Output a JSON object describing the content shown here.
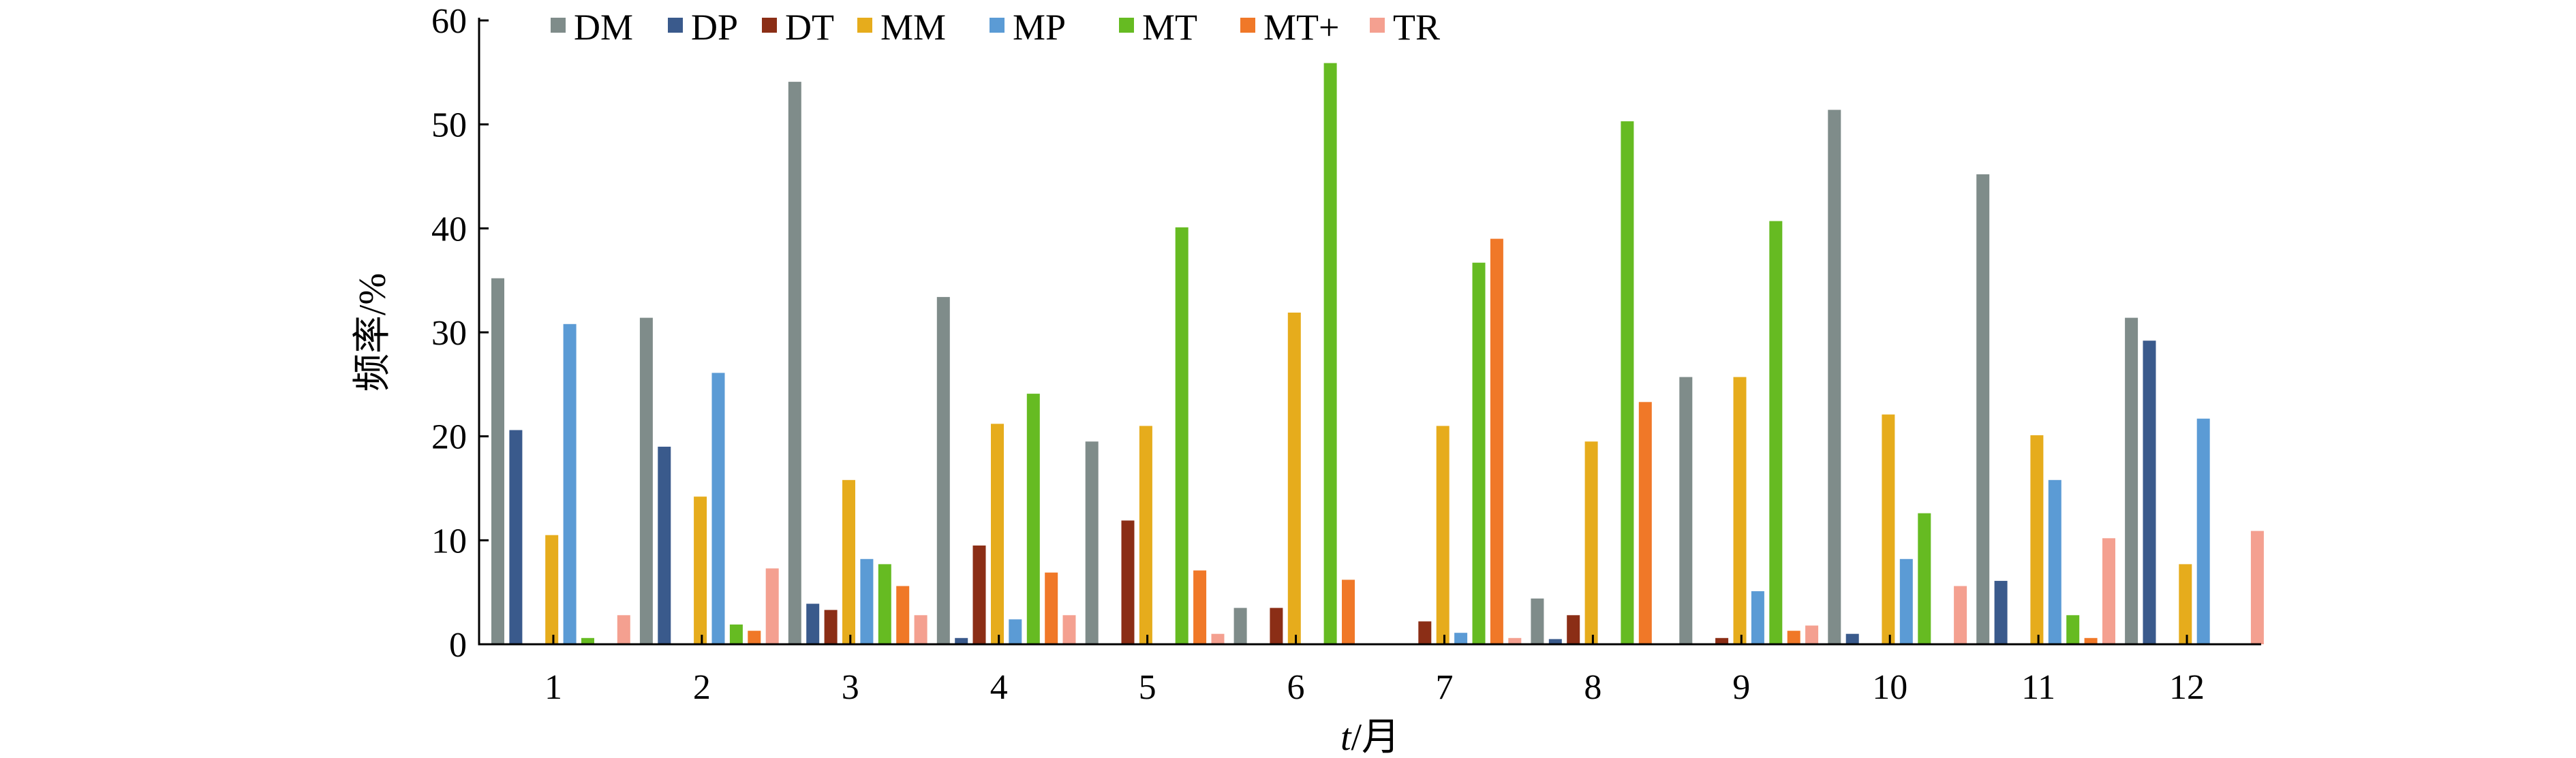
{
  "chart_data": {
    "type": "bar",
    "categories": [
      "1",
      "2",
      "3",
      "4",
      "5",
      "6",
      "7",
      "8",
      "9",
      "10",
      "11",
      "12"
    ],
    "xlabel_italic": "t",
    "xlabel_unit": "/月",
    "ylabel": "频率/%",
    "ylim": [
      0,
      60
    ],
    "yticks": [
      0,
      10,
      20,
      30,
      40,
      50,
      60
    ],
    "grid": false,
    "legend_position": "top",
    "series": [
      {
        "name": "DM",
        "color": "#7f8c8a",
        "values": [
          35.2,
          31.4,
          54.1,
          33.4,
          19.5,
          3.5,
          0,
          4.4,
          25.7,
          51.4,
          45.2,
          31.4
        ]
      },
      {
        "name": "DP",
        "color": "#3a5a8c",
        "values": [
          20.6,
          19.0,
          3.9,
          0.6,
          0,
          0,
          0,
          0.5,
          0,
          1.0,
          6.1,
          29.2
        ]
      },
      {
        "name": "DT",
        "color": "#8b2e16",
        "values": [
          0,
          0,
          3.3,
          9.5,
          11.9,
          3.5,
          2.2,
          2.8,
          0.6,
          0,
          0,
          0
        ]
      },
      {
        "name": "MM",
        "color": "#e6ac1c",
        "values": [
          10.5,
          14.2,
          15.8,
          21.2,
          21.0,
          31.9,
          21.0,
          19.5,
          25.7,
          22.1,
          20.1,
          7.7
        ]
      },
      {
        "name": "MP",
        "color": "#5b9bd5",
        "values": [
          30.8,
          26.1,
          8.2,
          2.4,
          0,
          0,
          1.1,
          0,
          5.1,
          8.2,
          15.8,
          21.7
        ]
      },
      {
        "name": "MT",
        "color": "#66bb22",
        "values": [
          0.6,
          1.9,
          7.7,
          24.1,
          40.1,
          55.9,
          36.7,
          50.3,
          40.7,
          12.6,
          2.8,
          0
        ]
      },
      {
        "name": "MT+",
        "color": "#f07828",
        "values": [
          0,
          1.3,
          5.6,
          6.9,
          7.1,
          6.2,
          39.0,
          23.3,
          1.3,
          0,
          0.6,
          0
        ]
      },
      {
        "name": "TR",
        "color": "#f4a090",
        "values": [
          2.8,
          7.3,
          2.8,
          2.8,
          1.0,
          0,
          0.6,
          0,
          1.8,
          5.6,
          10.2,
          10.9
        ]
      }
    ]
  }
}
